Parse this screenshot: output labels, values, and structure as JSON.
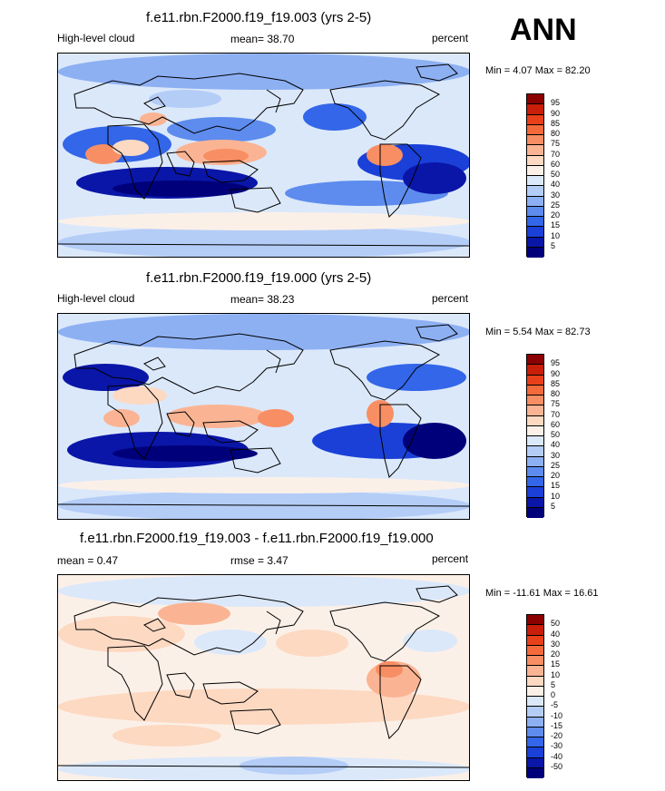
{
  "season_label": "ANN",
  "panels": [
    {
      "title": "f.e11.rbn.F2000.f19_f19.003 (yrs 2-5)",
      "left_label": "High-level cloud",
      "center_label": "mean=  38.70",
      "right_label": "percent",
      "min_max": "Min =   4.07 Max =  82.20",
      "colorbar_levels": [
        "95",
        "90",
        "85",
        "80",
        "75",
        "70",
        "60",
        "50",
        "40",
        "30",
        "25",
        "20",
        "15",
        "10",
        "5"
      ],
      "colorbar_colors": [
        "#8b0000",
        "#c81e0a",
        "#e8401a",
        "#f46a3b",
        "#f88e63",
        "#fbb493",
        "#fdd9c2",
        "#fbf0e8",
        "#dbe8fa",
        "#b4cdf7",
        "#8db0f3",
        "#5d8cee",
        "#3366e8",
        "#1a40d8",
        "#0a16a8",
        "#00007a"
      ],
      "map_style": "cloud"
    },
    {
      "title": "f.e11.rbn.F2000.f19_f19.000 (yrs 2-5)",
      "left_label": "High-level cloud",
      "center_label": "mean=  38.23",
      "right_label": "percent",
      "min_max": "Min =   5.54 Max =  82.73",
      "colorbar_levels": [
        "95",
        "90",
        "85",
        "80",
        "75",
        "70",
        "60",
        "50",
        "40",
        "30",
        "25",
        "20",
        "15",
        "10",
        "5"
      ],
      "colorbar_colors": [
        "#8b0000",
        "#c81e0a",
        "#e8401a",
        "#f46a3b",
        "#f88e63",
        "#fbb493",
        "#fdd9c2",
        "#fbf0e8",
        "#dbe8fa",
        "#b4cdf7",
        "#8db0f3",
        "#5d8cee",
        "#3366e8",
        "#1a40d8",
        "#0a16a8",
        "#00007a"
      ],
      "map_style": "cloud"
    },
    {
      "title": "f.e11.rbn.F2000.f19_f19.003 - f.e11.rbn.F2000.f19_f19.000",
      "left_label": "mean =   0.47",
      "center_label": "rmse =   3.47",
      "right_label": "percent",
      "min_max": "Min = -11.61 Max =  16.61",
      "colorbar_levels": [
        "50",
        "40",
        "30",
        "20",
        "15",
        "10",
        "5",
        "0",
        "-5",
        "-10",
        "-15",
        "-20",
        "-30",
        "-40",
        "-50"
      ],
      "colorbar_colors": [
        "#8b0000",
        "#c81e0a",
        "#e8401a",
        "#f46a3b",
        "#f88e63",
        "#fbb493",
        "#fdd9c2",
        "#fbf0e8",
        "#dbe8fa",
        "#b4cdf7",
        "#8db0f3",
        "#5d8cee",
        "#3366e8",
        "#1a40d8",
        "#0a16a8",
        "#00007a"
      ],
      "map_style": "diff"
    }
  ]
}
